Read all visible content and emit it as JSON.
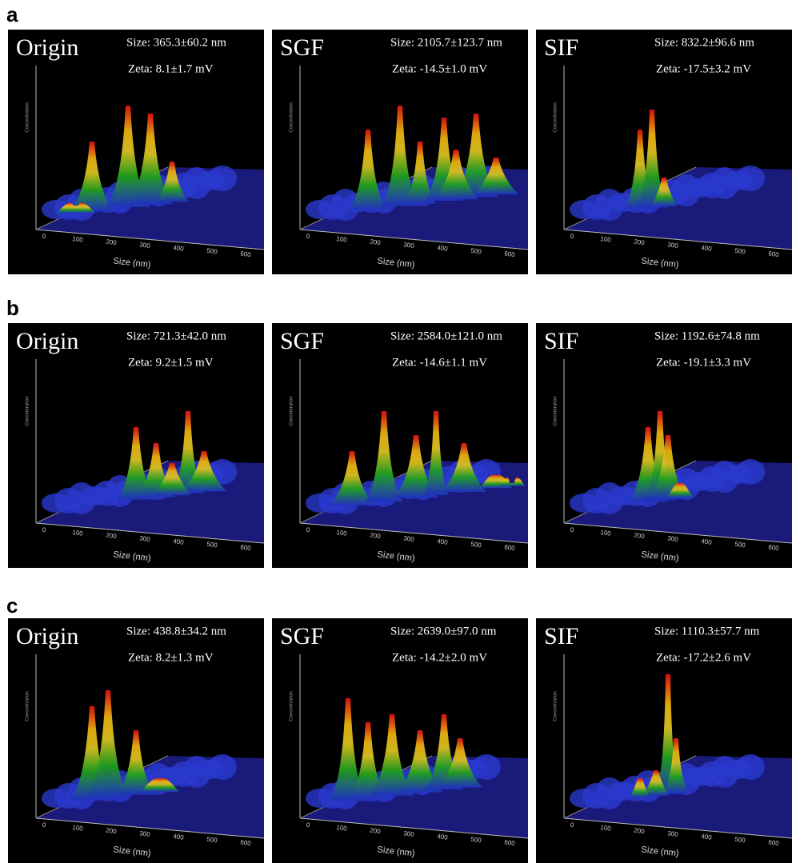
{
  "rows": [
    {
      "label": "a",
      "panels": [
        {
          "title": "Origin",
          "size": "Size: 365.3±60.2 nm",
          "zeta": "Zeta: 8.1±1.7 mV",
          "y_axis_label": "Concentration",
          "x_axis_label": "Size (nm)",
          "x_ticks": [
            0,
            100,
            200,
            300,
            400,
            500,
            600
          ]
        },
        {
          "title": "SGF",
          "size": "Size: 2105.7±123.7 nm",
          "zeta": "Zeta: -14.5±1.0 mV",
          "y_axis_label": "Concentration",
          "x_axis_label": "Size (nm)",
          "x_ticks": [
            0,
            100,
            200,
            300,
            400,
            500,
            600
          ]
        },
        {
          "title": "SIF",
          "size": "Size: 832.2±96.6 nm",
          "zeta": "Zeta: -17.5±3.2 mV",
          "y_axis_label": "Concentration",
          "x_axis_label": "Size (nm)",
          "x_ticks": [
            0,
            100,
            200,
            300,
            400,
            500,
            600
          ]
        }
      ]
    },
    {
      "label": "b",
      "panels": [
        {
          "title": "Origin",
          "size": "Size: 721.3±42.0 nm",
          "zeta": "Zeta: 9.2±1.5 mV",
          "y_axis_label": "Concentration",
          "x_axis_label": "Size (nm)",
          "x_ticks": [
            0,
            100,
            200,
            300,
            400,
            500,
            600
          ]
        },
        {
          "title": "SGF",
          "size": "Size: 2584.0±121.0 nm",
          "zeta": "Zeta: -14.6±1.1 mV",
          "y_axis_label": "Concentration",
          "x_axis_label": "Size (nm)",
          "x_ticks": [
            0,
            100,
            200,
            300,
            400,
            500,
            600
          ]
        },
        {
          "title": "SIF",
          "size": "Size: 1192.6±74.8 nm",
          "zeta": "Zeta: -19.1±3.3 mV",
          "y_axis_label": "Concentration",
          "x_axis_label": "Size (nm)",
          "x_ticks": [
            0,
            100,
            200,
            300,
            400,
            500,
            600
          ]
        }
      ]
    },
    {
      "label": "c",
      "panels": [
        {
          "title": "Origin",
          "size": "Size: 438.8±34.2 nm",
          "zeta": "Zeta: 8.2±1.3 mV",
          "y_axis_label": "Concentration",
          "x_axis_label": "Size (nm)",
          "x_ticks": [
            0,
            100,
            200,
            300,
            400,
            500,
            600
          ]
        },
        {
          "title": "SGF",
          "size": "Size: 2639.0±97.0 nm",
          "zeta": "Zeta: -14.2±2.0 mV",
          "y_axis_label": "Concentration",
          "x_axis_label": "Size (nm)",
          "x_ticks": [
            0,
            100,
            200,
            300,
            400,
            500,
            600
          ]
        },
        {
          "title": "SIF",
          "size": "Size: 1110.3±57.7 nm",
          "zeta": "Zeta: -17.2±2.6 mV",
          "y_axis_label": "Concentration",
          "x_axis_label": "Size (nm)",
          "x_ticks": [
            0,
            100,
            200,
            300,
            400,
            500,
            600
          ]
        }
      ]
    }
  ]
}
